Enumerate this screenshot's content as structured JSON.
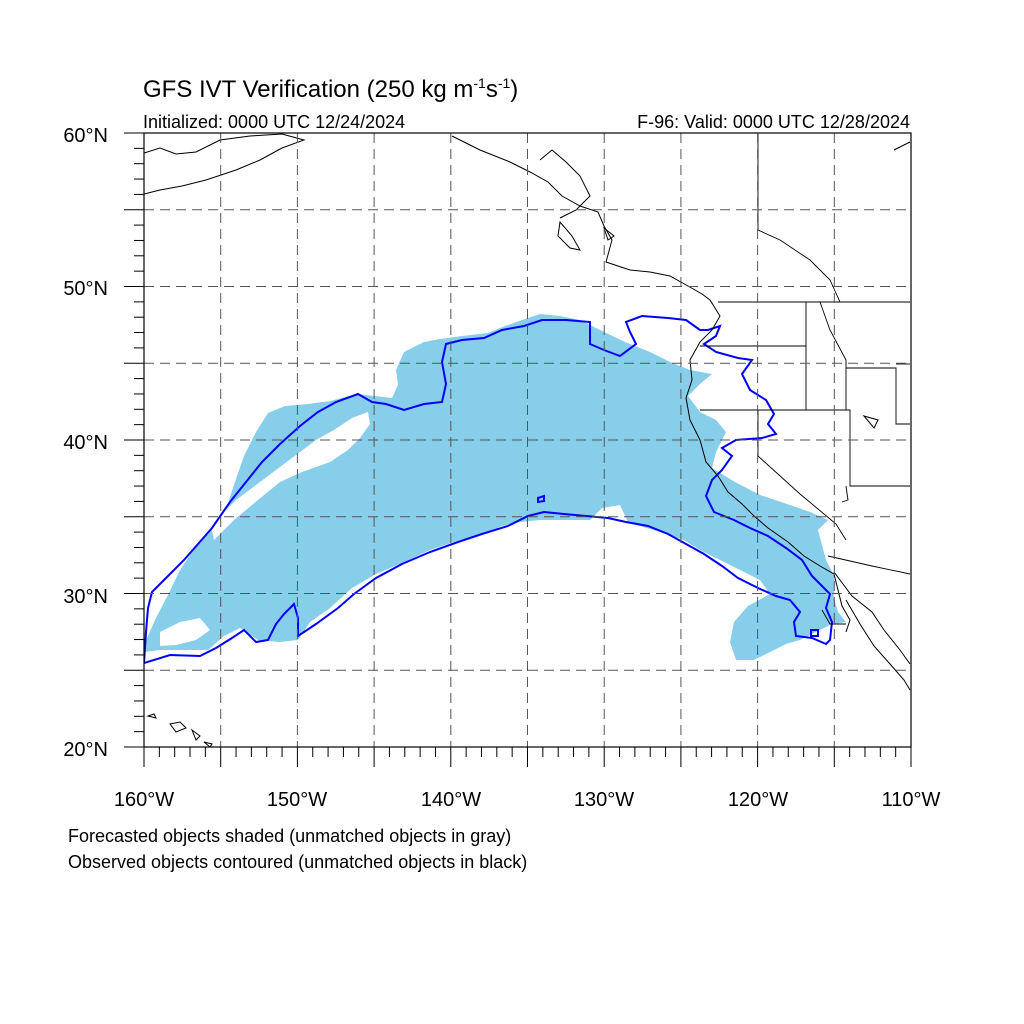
{
  "title": {
    "main": "GFS IVT Verification (250 kg m",
    "exp1": "-1",
    "mid": "s",
    "exp2": "-1",
    "close": ")"
  },
  "subtitle_left": "Initialized: 0000 UTC 12/24/2024",
  "subtitle_right": "F-96: Valid: 0000 UTC 12/28/2024",
  "map": {
    "lon_range": [
      -160,
      -110
    ],
    "lat_range": [
      20,
      60
    ],
    "grid": "dashed",
    "lat_labels": [
      "20°N",
      "30°N",
      "40°N",
      "50°N",
      "60°N"
    ],
    "lon_labels": [
      "160°W",
      "150°W",
      "140°W",
      "130°W",
      "120°W",
      "110°W"
    ],
    "colors": {
      "forecast_fill": "#87ceeb",
      "observed_contour": "#0000ff",
      "coastline": "#000000",
      "grid": "#555555"
    }
  },
  "caption_line1": "Forecasted objects shaded (unmatched objects in gray)",
  "caption_line2": "Observed objects contoured (unmatched objects in black)"
}
